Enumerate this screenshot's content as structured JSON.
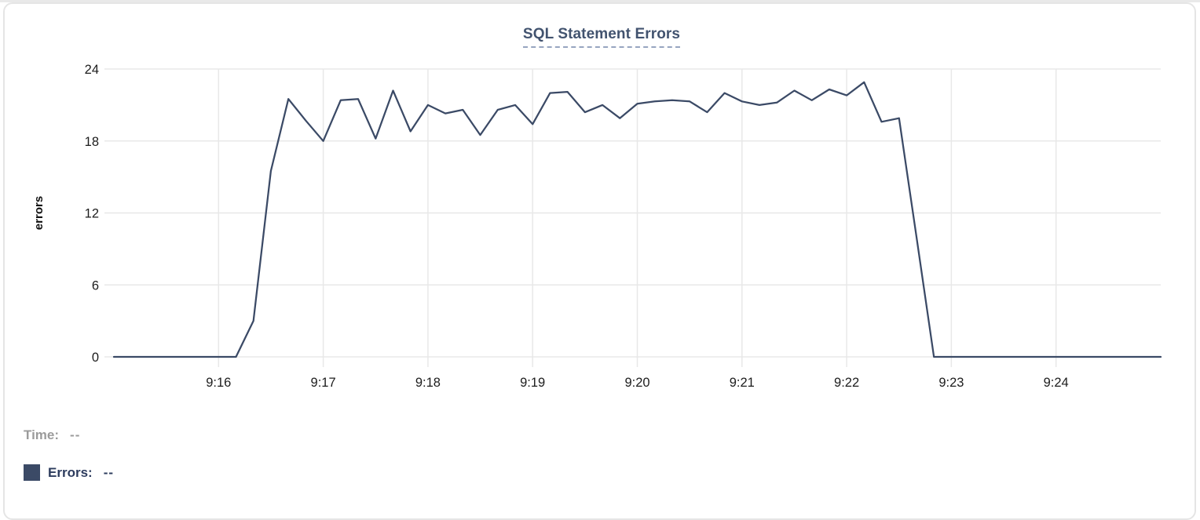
{
  "panel": {
    "background": "#ffffff",
    "border_color": "#e5e5e5"
  },
  "header": {
    "title": "SQL Statement Errors",
    "title_color": "#42536f",
    "underline_color": "#97a5c0"
  },
  "legend": {
    "time_label": "Time:",
    "time_value": "--",
    "time_color": "#9b9b9b",
    "errors_label": "Errors:",
    "errors_value": "--",
    "errors_color": "#2d3c5e",
    "swatch_color": "#3b4a66"
  },
  "chart_data": {
    "type": "line",
    "title": "SQL Statement Errors",
    "xlabel": "",
    "ylabel": "errors",
    "ylim": [
      0,
      24
    ],
    "yticks": [
      0,
      6,
      12,
      18,
      24
    ],
    "xticks": [
      "9:16",
      "9:17",
      "9:18",
      "9:19",
      "9:20",
      "9:21",
      "9:22",
      "9:23",
      "9:24"
    ],
    "x_range": [
      "9:15:00",
      "9:25:00"
    ],
    "grid": true,
    "legend_position": "bottom-left",
    "line_color": "#3b4a66",
    "grid_color": "#e8e8e8",
    "tick_label_color": "#1c1c1c",
    "x": [
      "9:15:00",
      "9:15:10",
      "9:15:20",
      "9:15:30",
      "9:15:40",
      "9:15:50",
      "9:16:00",
      "9:16:10",
      "9:16:20",
      "9:16:30",
      "9:16:40",
      "9:16:50",
      "9:17:00",
      "9:17:10",
      "9:17:20",
      "9:17:30",
      "9:17:40",
      "9:17:50",
      "9:18:00",
      "9:18:10",
      "9:18:20",
      "9:18:30",
      "9:18:40",
      "9:18:50",
      "9:19:00",
      "9:19:10",
      "9:19:20",
      "9:19:30",
      "9:19:40",
      "9:19:50",
      "9:20:00",
      "9:20:10",
      "9:20:20",
      "9:20:30",
      "9:20:40",
      "9:20:50",
      "9:21:00",
      "9:21:10",
      "9:21:20",
      "9:21:30",
      "9:21:40",
      "9:21:50",
      "9:22:00",
      "9:22:10",
      "9:22:20",
      "9:22:30",
      "9:22:40",
      "9:22:50",
      "9:23:00",
      "9:23:10",
      "9:23:20",
      "9:23:30",
      "9:23:40",
      "9:23:50",
      "9:24:00",
      "9:24:10",
      "9:24:20",
      "9:24:30",
      "9:24:40",
      "9:24:50",
      "9:25:00"
    ],
    "series": [
      {
        "name": "Errors",
        "values": [
          0,
          0,
          0,
          0,
          0,
          0,
          0,
          0,
          3,
          15.5,
          21.5,
          19.7,
          18,
          21.4,
          21.5,
          18.2,
          22.2,
          18.8,
          21,
          20.3,
          20.6,
          18.5,
          20.6,
          21,
          19.4,
          22,
          22.1,
          20.4,
          21,
          19.9,
          21.1,
          21.3,
          21.4,
          21.3,
          20.4,
          22,
          21.3,
          21,
          21.2,
          22.2,
          21.4,
          22.3,
          21.8,
          22.9,
          19.6,
          19.9,
          10,
          0,
          0,
          0,
          0,
          0,
          0,
          0,
          0,
          0,
          0,
          0,
          0,
          0,
          0
        ]
      }
    ]
  }
}
